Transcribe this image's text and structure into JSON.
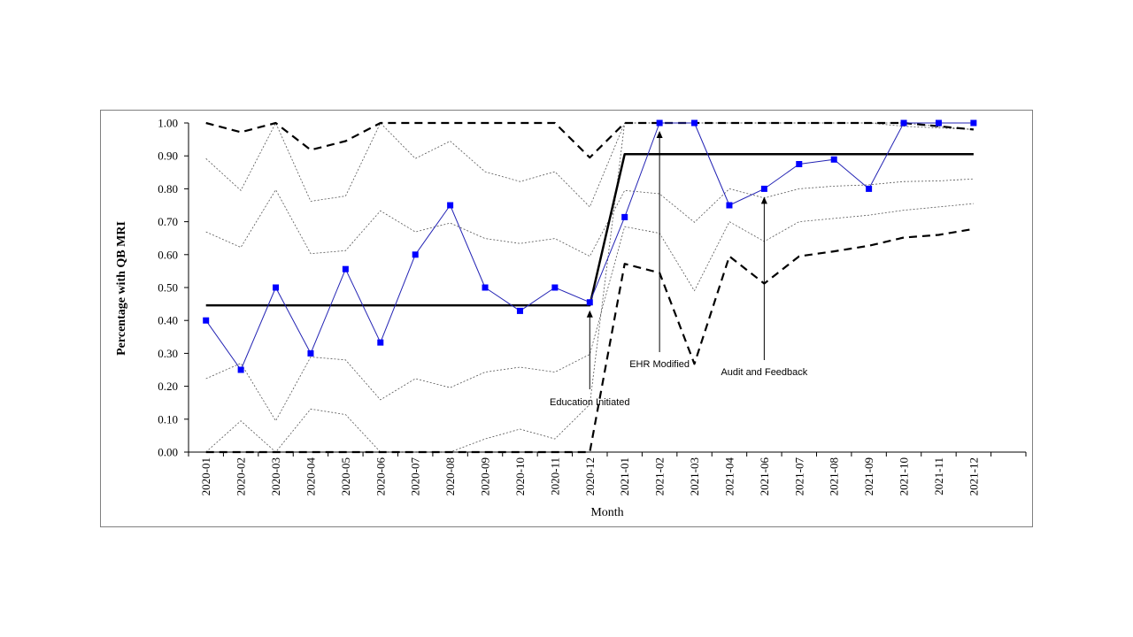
{
  "chart_data": {
    "type": "line",
    "title": "",
    "xlabel": "Month",
    "ylabel": "Percentage with QB MRI",
    "ylim": [
      0,
      1
    ],
    "yticks": [
      "0.00",
      "0.10",
      "0.20",
      "0.30",
      "0.40",
      "0.50",
      "0.60",
      "0.70",
      "0.80",
      "0.90",
      "1.00"
    ],
    "grid": false,
    "legend": "none",
    "categories": [
      "2020-01",
      "2020-02",
      "2020-03",
      "2020-04",
      "2020-05",
      "2020-06",
      "2020-07",
      "2020-08",
      "2020-09",
      "2020-10",
      "2020-11",
      "2020-12",
      "2021-01",
      "2021-02",
      "2021-03",
      "2021-04",
      "2021-06",
      "2021-07",
      "2021-08",
      "2021-09",
      "2021-10",
      "2021-11",
      "2021-12"
    ],
    "series": [
      {
        "style": "blue-markers",
        "color": "#0000ff",
        "values": [
          0.4,
          0.25,
          0.5,
          0.3,
          0.556,
          0.333,
          0.6,
          0.75,
          0.5,
          0.429,
          0.5,
          0.455,
          0.714,
          1.0,
          1.0,
          0.75,
          0.8,
          0.875,
          0.889,
          0.8,
          1.0,
          1.0,
          1.0
        ]
      },
      {
        "style": "center-line",
        "color": "#000000",
        "values": [
          0.446,
          0.446,
          0.446,
          0.446,
          0.446,
          0.446,
          0.446,
          0.446,
          0.446,
          0.446,
          0.446,
          0.446,
          0.905,
          0.905,
          0.905,
          0.905,
          0.905,
          0.905,
          0.905,
          0.905,
          0.905,
          0.905,
          0.905
        ]
      },
      {
        "style": "control-limit",
        "color": "#000000",
        "values": [
          1.0,
          0.972,
          1.0,
          0.918,
          0.945,
          1.0,
          1.0,
          1.0,
          1.0,
          1.0,
          1.0,
          0.895,
          1.0,
          1.0,
          1.0,
          1.0,
          1.0,
          1.0,
          1.0,
          1.0,
          1.0,
          0.99,
          0.98
        ]
      },
      {
        "style": "control-limit",
        "color": "#000000",
        "values": [
          0.0,
          0.0,
          0.0,
          0.0,
          0.0,
          0.0,
          0.0,
          0.0,
          0.0,
          0.0,
          0.0,
          0.0,
          0.572,
          0.545,
          0.268,
          0.595,
          0.512,
          0.595,
          0.61,
          0.627,
          0.652,
          0.66,
          0.678
        ]
      },
      {
        "style": "sigma-line",
        "color": "#555555",
        "values": [
          0.892,
          0.795,
          1.0,
          0.762,
          0.778,
          1.0,
          0.892,
          0.945,
          0.852,
          0.822,
          0.852,
          0.745,
          1.0,
          1.0,
          1.0,
          1.0,
          1.0,
          1.0,
          1.0,
          1.0,
          0.99,
          0.985,
          0.98
        ]
      },
      {
        "style": "sigma-line",
        "color": "#555555",
        "values": [
          0.669,
          0.622,
          0.797,
          0.603,
          0.612,
          0.733,
          0.669,
          0.696,
          0.649,
          0.634,
          0.649,
          0.595,
          0.795,
          0.785,
          0.698,
          0.8,
          0.772,
          0.8,
          0.808,
          0.812,
          0.822,
          0.824,
          0.83
        ]
      },
      {
        "style": "sigma-line",
        "color": "#555555",
        "values": [
          0.223,
          0.27,
          0.095,
          0.289,
          0.28,
          0.159,
          0.223,
          0.196,
          0.243,
          0.258,
          0.243,
          0.297,
          0.685,
          0.665,
          0.49,
          0.7,
          0.64,
          0.7,
          0.71,
          0.72,
          0.735,
          0.745,
          0.755
        ]
      },
      {
        "style": "sigma-line",
        "color": "#555555",
        "values": [
          0.0,
          0.095,
          0.0,
          0.131,
          0.114,
          0.0,
          0.0,
          0.0,
          0.04,
          0.07,
          0.04,
          0.145,
          1.0,
          1.0,
          1.0,
          1.0,
          1.0,
          1.0,
          1.0,
          1.0,
          1.0,
          0.99,
          0.98
        ]
      }
    ],
    "annotations": [
      {
        "text": "Education Initiated",
        "category": "2020-12"
      },
      {
        "text": "EHR Modified",
        "category": "2021-02"
      },
      {
        "text": "Audit and Feedback",
        "category": "2021-06"
      }
    ]
  }
}
